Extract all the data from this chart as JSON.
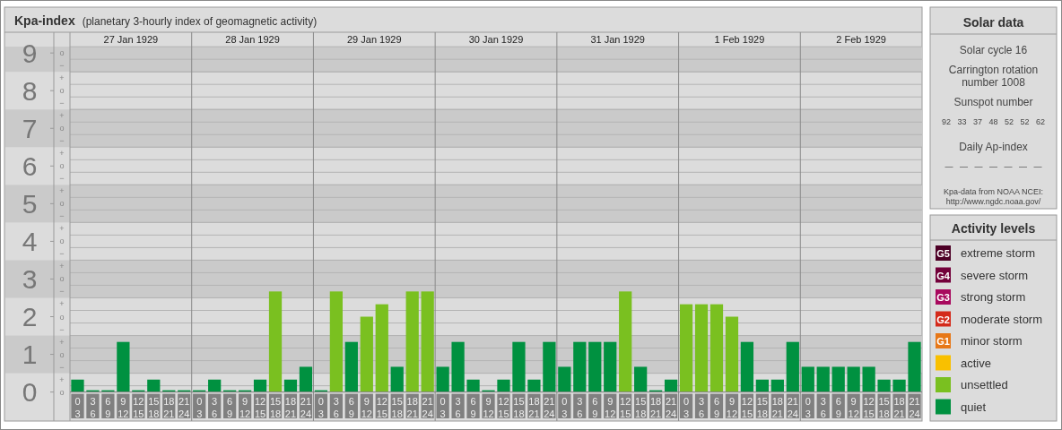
{
  "chart_data": [
    {
      "type": "bar",
      "title": "Kpa-index",
      "subtitle": "(planetary 3-hourly index of geomagnetic activity)",
      "legend_title": "Activity levels",
      "legend": "right",
      "categories": [
        "0\n3",
        "3\n6",
        "6\n9",
        "9\n12",
        "12\n15",
        "15\n18",
        "18\n21",
        "21\n24",
        "0\n3",
        "3\n6",
        "6\n9",
        "9\n12",
        "12\n15",
        "15\n18",
        "18\n21",
        "21\n24",
        "0\n3",
        "3\n6",
        "6\n9",
        "9\n12",
        "12\n15",
        "15\n18",
        "18\n21",
        "21\n24",
        "0\n3",
        "3\n6",
        "6\n9",
        "9\n12",
        "12\n15",
        "15\n18",
        "18\n21",
        "21\n24",
        "0\n3",
        "3\n6",
        "6\n9",
        "9\n12",
        "12\n15",
        "15\n18",
        "18\n21",
        "21\n24",
        "0\n3",
        "3\n6",
        "6\n9",
        "9\n12",
        "12\n15",
        "15\n18",
        "18\n21",
        "21\n24",
        "0\n3",
        "3\n6",
        "6\n9",
        "9\n12",
        "12\n15",
        "15\n18",
        "18\n21",
        "21\n24"
      ],
      "series": [
        {
          "name": "extreme storm",
          "color": "#4d0026",
          "values": [
            null,
            null,
            null,
            null,
            null,
            null,
            null,
            null,
            null,
            null,
            null,
            null,
            null,
            null,
            null,
            null,
            null,
            null,
            null,
            null,
            null,
            null,
            null,
            null,
            null,
            null,
            null,
            null,
            null,
            null,
            null,
            null,
            null,
            null,
            null,
            null,
            null,
            null,
            null,
            null,
            null,
            null,
            null,
            null,
            null,
            null,
            null,
            null,
            null,
            null,
            null,
            null,
            null,
            null,
            null,
            null
          ]
        },
        {
          "name": "severe storm",
          "color": "#73003a",
          "values": [
            null,
            null,
            null,
            null,
            null,
            null,
            null,
            null,
            null,
            null,
            null,
            null,
            null,
            null,
            null,
            null,
            null,
            null,
            null,
            null,
            null,
            null,
            null,
            null,
            null,
            null,
            null,
            null,
            null,
            null,
            null,
            null,
            null,
            null,
            null,
            null,
            null,
            null,
            null,
            null,
            null,
            null,
            null,
            null,
            null,
            null,
            null,
            null,
            null,
            null,
            null,
            null,
            null,
            null,
            null,
            null
          ]
        },
        {
          "name": "strong storm",
          "color": "#a8095e",
          "values": [
            null,
            null,
            null,
            null,
            null,
            null,
            null,
            null,
            null,
            null,
            null,
            null,
            null,
            null,
            null,
            null,
            null,
            null,
            null,
            null,
            null,
            null,
            null,
            null,
            null,
            null,
            null,
            null,
            null,
            null,
            null,
            null,
            null,
            null,
            null,
            null,
            null,
            null,
            null,
            null,
            null,
            null,
            null,
            null,
            null,
            null,
            null,
            null,
            null,
            null,
            null,
            null,
            null,
            null,
            null,
            null
          ]
        },
        {
          "name": "moderate storm",
          "color": "#d42a1a",
          "values": [
            null,
            null,
            null,
            null,
            null,
            null,
            null,
            null,
            null,
            null,
            null,
            null,
            null,
            null,
            null,
            null,
            null,
            null,
            null,
            null,
            null,
            null,
            null,
            null,
            null,
            null,
            null,
            null,
            null,
            null,
            null,
            null,
            null,
            null,
            null,
            null,
            null,
            null,
            null,
            null,
            null,
            null,
            null,
            null,
            null,
            null,
            null,
            null,
            null,
            null,
            null,
            null,
            null,
            null,
            null,
            null
          ]
        },
        {
          "name": "minor storm",
          "color": "#e77818",
          "values": [
            null,
            null,
            null,
            null,
            null,
            null,
            null,
            null,
            null,
            null,
            null,
            null,
            null,
            null,
            null,
            null,
            null,
            null,
            null,
            null,
            null,
            null,
            null,
            null,
            null,
            null,
            null,
            null,
            null,
            null,
            null,
            null,
            null,
            null,
            null,
            null,
            null,
            null,
            null,
            null,
            null,
            null,
            null,
            null,
            null,
            null,
            null,
            null,
            null,
            null,
            null,
            null,
            null,
            null,
            null,
            null
          ]
        },
        {
          "name": "active",
          "color": "#f9c000",
          "values": [
            null,
            null,
            null,
            null,
            null,
            null,
            null,
            null,
            null,
            null,
            null,
            null,
            null,
            null,
            null,
            null,
            null,
            null,
            null,
            null,
            null,
            null,
            null,
            null,
            null,
            null,
            null,
            null,
            null,
            null,
            null,
            null,
            null,
            null,
            null,
            null,
            null,
            null,
            null,
            null,
            null,
            null,
            null,
            null,
            null,
            null,
            null,
            null,
            null,
            null,
            null,
            null,
            null,
            null,
            null,
            null
          ]
        },
        {
          "name": "unsettled",
          "color": "#7ac020",
          "values": [
            null,
            null,
            null,
            null,
            null,
            null,
            null,
            null,
            null,
            null,
            null,
            null,
            null,
            2.67,
            null,
            null,
            null,
            2.67,
            null,
            2,
            2.33,
            null,
            2.67,
            2.67,
            null,
            null,
            null,
            null,
            null,
            null,
            null,
            null,
            null,
            null,
            null,
            null,
            2.67,
            null,
            null,
            null,
            2.33,
            2.33,
            2.33,
            2,
            null,
            null,
            null,
            null,
            null,
            null,
            null,
            null,
            null,
            null,
            null,
            null
          ]
        },
        {
          "name": "quiet",
          "color": "#009140",
          "values": [
            0.33,
            0,
            0,
            1.33,
            0,
            0.33,
            0,
            0,
            0,
            0.33,
            0,
            0,
            0.33,
            null,
            0.33,
            0.67,
            0,
            null,
            1.33,
            null,
            null,
            0.67,
            null,
            null,
            0.67,
            1.33,
            0.33,
            0,
            0.33,
            1.33,
            0.33,
            1.33,
            0.67,
            1.33,
            1.33,
            1.33,
            null,
            0.67,
            0,
            0.33,
            null,
            null,
            null,
            null,
            1.33,
            0.33,
            0.33,
            1.33,
            0.67,
            0.67,
            0.67,
            0.67,
            0.67,
            0.33,
            0.33,
            1.33
          ]
        }
      ],
      "ylim": [
        -0.77,
        9.17
      ],
      "yticks": [
        0,
        1,
        2,
        3,
        4,
        5,
        6,
        7,
        8,
        9
      ],
      "x2lim": [
        "1929-01-27",
        "1929-02-03"
      ],
      "x2ticks": [
        {
          "value": "1929-01-27T12:00",
          "label": "27 Jan 1929"
        },
        {
          "value": "1929-01-28T12:00",
          "label": "28 Jan 1929"
        },
        {
          "value": "1929-01-29T12:00",
          "label": "29 Jan 1929"
        },
        {
          "value": "1929-01-30T12:00",
          "label": "30 Jan 1929"
        },
        {
          "value": "1929-01-31T12:00",
          "label": "31 Jan 1929"
        },
        {
          "value": "1929-02-01T12:00",
          "label": "1 Feb 1929"
        },
        {
          "value": "1929-02-02T12:00",
          "label": "2 Feb 1929"
        }
      ],
      "grid": true,
      "bands": [
        {
          "axis": "y",
          "from": 0.5,
          "to": 1.5,
          "color": "#cacaca"
        },
        {
          "axis": "y",
          "from": 2.5,
          "to": 3.5,
          "color": "#cacaca"
        },
        {
          "axis": "y",
          "from": 4.5,
          "to": 5.5,
          "color": "#cacaca"
        },
        {
          "axis": "y",
          "from": 6.5,
          "to": 7.5,
          "color": "#cacaca"
        },
        {
          "axis": "y",
          "from": 8.5,
          "to": 9.17,
          "color": "#cacaca"
        }
      ],
      "annotations": [
        "G5",
        "G4",
        "G3",
        "G2",
        "G1",
        "o\n−\n+\no\n−\n+\no\n−\n+\no\n−\n+\no\n−\n+\no\n−\n+\no\n−\n+\no\n−\n+\no\n−\n+\no"
      ]
    },
    {
      "type": "other",
      "title": "Solar data",
      "annotations": [
        "Solar cycle 16",
        "Carrington rotation\nnumber 1008",
        "Sunspot number",
        "92   33   37   48   52   52   62",
        "Daily Ap-index",
        "—   —   —   —   —   —   —",
        "Kpa-data from NOAA NCEI:\nhttp://www.ngdc.noaa.gov/"
      ]
    }
  ]
}
